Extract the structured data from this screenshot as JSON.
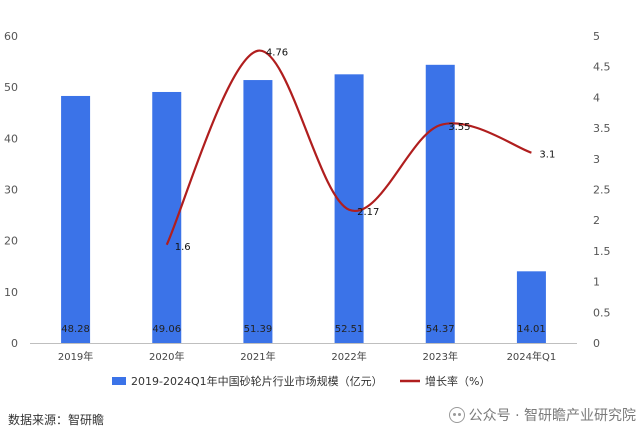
{
  "chart_data": {
    "type": "bar+line",
    "categories": [
      "2019年",
      "2020年",
      "2021年",
      "2022年",
      "2023年",
      "2024年Q1"
    ],
    "series": [
      {
        "name": "2019-2024Q1年中国砂轮片行业市场规模（亿元）",
        "type": "bar",
        "axis": "left",
        "values": [
          48.28,
          49.06,
          51.39,
          52.51,
          54.37,
          14.01
        ],
        "value_labels": [
          "48.28",
          "49.06",
          "51.39",
          "52.51",
          "54.37",
          "14.01"
        ]
      },
      {
        "name": "增长率（%）",
        "type": "line",
        "axis": "right",
        "values": [
          null,
          1.6,
          4.76,
          2.17,
          3.55,
          3.1
        ],
        "value_labels": [
          "",
          "1.6",
          "4.76",
          "2.17",
          "3.55",
          "3.1"
        ]
      }
    ],
    "y_left": {
      "min": 0,
      "max": 60,
      "ticks": [
        "0",
        "10",
        "20",
        "30",
        "40",
        "50",
        "60"
      ]
    },
    "y_right": {
      "min": 0,
      "max": 5,
      "ticks": [
        "0",
        "0.5",
        "1",
        "1.5",
        "2",
        "2.5",
        "3",
        "3.5",
        "4",
        "4.5",
        "5"
      ]
    },
    "grid": false,
    "legend_position": "bottom",
    "colors": {
      "bar": "#3b73e8",
      "line": "#b01e1e",
      "axis": "#bfbfbf"
    }
  },
  "footer": {
    "source": "数据来源：智研瞻",
    "watermark": "公众号 · 智研瞻产业研究院"
  }
}
